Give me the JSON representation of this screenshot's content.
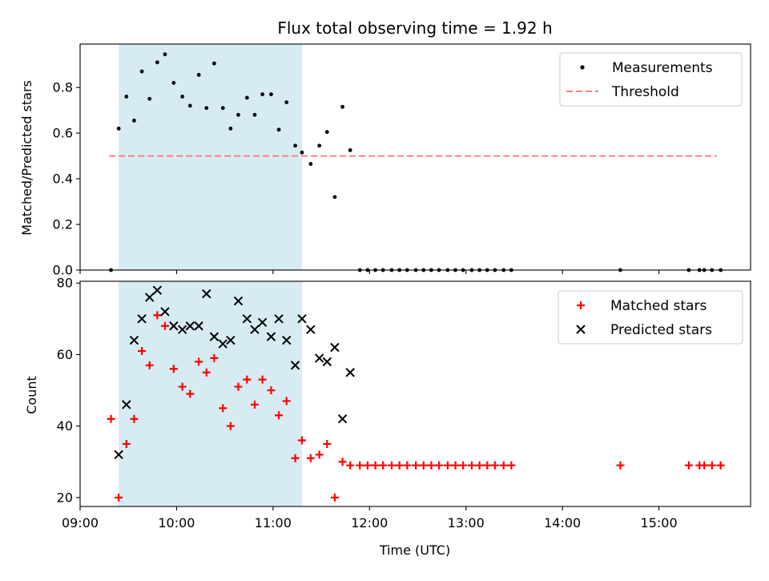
{
  "chart_data": [
    {
      "type": "scatter",
      "title": "Flux total observing time = 1.92 h",
      "xlabel": "",
      "ylabel": "Matched/Predicted stars",
      "xlim": [
        9.0,
        15.95
      ],
      "ylim": [
        0.0,
        0.99
      ],
      "yticks": [
        0.0,
        0.2,
        0.4,
        0.6,
        0.8
      ],
      "ytick_labels": [
        "0.0",
        "0.2",
        "0.4",
        "0.6",
        "0.8"
      ],
      "xticks": [
        9,
        10,
        11,
        12,
        13,
        14,
        15
      ],
      "shaded_span": [
        9.4,
        11.3
      ],
      "shade_color": "#add8e6",
      "threshold": {
        "name": "Threshold",
        "value": 0.5,
        "x_start": 9.3,
        "x_end": 15.6,
        "color": "#ff7f7f"
      },
      "legend_position": "top-right",
      "series": [
        {
          "name": "Measurements",
          "marker": "dot",
          "color": "#000000",
          "points": [
            [
              9.32,
              0.0
            ],
            [
              9.4,
              0.62
            ],
            [
              9.48,
              0.76
            ],
            [
              9.56,
              0.655
            ],
            [
              9.64,
              0.87
            ],
            [
              9.72,
              0.75
            ],
            [
              9.8,
              0.91
            ],
            [
              9.88,
              0.945
            ],
            [
              9.97,
              0.82
            ],
            [
              10.06,
              0.76
            ],
            [
              10.14,
              0.72
            ],
            [
              10.23,
              0.855
            ],
            [
              10.31,
              0.71
            ],
            [
              10.39,
              0.905
            ],
            [
              10.48,
              0.71
            ],
            [
              10.56,
              0.62
            ],
            [
              10.64,
              0.68
            ],
            [
              10.73,
              0.755
            ],
            [
              10.81,
              0.68
            ],
            [
              10.89,
              0.77
            ],
            [
              10.98,
              0.77
            ],
            [
              11.06,
              0.615
            ],
            [
              11.14,
              0.735
            ],
            [
              11.23,
              0.545
            ],
            [
              11.3,
              0.515
            ],
            [
              11.39,
              0.465
            ],
            [
              11.48,
              0.545
            ],
            [
              11.56,
              0.605
            ],
            [
              11.64,
              0.32
            ],
            [
              11.72,
              0.715
            ],
            [
              11.8,
              0.525
            ],
            [
              11.9,
              0.0
            ],
            [
              11.98,
              0.0
            ],
            [
              12.06,
              0.0
            ],
            [
              12.14,
              0.0
            ],
            [
              12.23,
              0.0
            ],
            [
              12.31,
              0.0
            ],
            [
              12.39,
              0.0
            ],
            [
              12.48,
              0.0
            ],
            [
              12.56,
              0.0
            ],
            [
              12.64,
              0.0
            ],
            [
              12.72,
              0.0
            ],
            [
              12.81,
              0.0
            ],
            [
              12.89,
              0.0
            ],
            [
              12.97,
              0.0
            ],
            [
              13.06,
              0.0
            ],
            [
              13.14,
              0.0
            ],
            [
              13.22,
              0.0
            ],
            [
              13.3,
              0.0
            ],
            [
              13.39,
              0.0
            ],
            [
              13.47,
              0.0
            ],
            [
              14.6,
              0.0
            ],
            [
              15.31,
              0.0
            ],
            [
              15.42,
              0.0
            ],
            [
              15.47,
              0.0
            ],
            [
              15.55,
              0.0
            ],
            [
              15.64,
              0.0
            ]
          ]
        }
      ]
    },
    {
      "type": "scatter",
      "title": "",
      "xlabel": "Time (UTC)",
      "ylabel": "Count",
      "xlim": [
        9.0,
        15.95
      ],
      "ylim": [
        17.5,
        80.5
      ],
      "yticks": [
        20,
        40,
        60,
        80
      ],
      "ytick_labels": [
        "20",
        "40",
        "60",
        "80"
      ],
      "xticks": [
        9,
        10,
        11,
        12,
        13,
        14,
        15
      ],
      "xtick_labels": [
        "09:00",
        "10:00",
        "11:00",
        "12:00",
        "13:00",
        "14:00",
        "15:00"
      ],
      "shaded_span": [
        9.4,
        11.3
      ],
      "shade_color": "#add8e6",
      "legend_position": "top-right",
      "series": [
        {
          "name": "Matched stars",
          "marker": "plus",
          "color": "#ff0000",
          "points": [
            [
              9.32,
              42
            ],
            [
              9.4,
              20
            ],
            [
              9.48,
              35
            ],
            [
              9.56,
              42
            ],
            [
              9.64,
              61
            ],
            [
              9.72,
              57
            ],
            [
              9.8,
              71
            ],
            [
              9.88,
              68
            ],
            [
              9.97,
              56
            ],
            [
              10.06,
              51
            ],
            [
              10.14,
              49
            ],
            [
              10.23,
              58
            ],
            [
              10.31,
              55
            ],
            [
              10.39,
              59
            ],
            [
              10.48,
              45
            ],
            [
              10.56,
              40
            ],
            [
              10.64,
              51
            ],
            [
              10.73,
              53
            ],
            [
              10.81,
              46
            ],
            [
              10.89,
              53
            ],
            [
              10.98,
              50
            ],
            [
              11.06,
              43
            ],
            [
              11.14,
              47
            ],
            [
              11.23,
              31
            ],
            [
              11.3,
              36
            ],
            [
              11.39,
              31
            ],
            [
              11.48,
              32
            ],
            [
              11.56,
              35
            ],
            [
              11.64,
              20
            ],
            [
              11.72,
              30
            ],
            [
              11.8,
              29
            ],
            [
              11.9,
              29
            ],
            [
              11.98,
              29
            ],
            [
              12.06,
              29
            ],
            [
              12.14,
              29
            ],
            [
              12.23,
              29
            ],
            [
              12.31,
              29
            ],
            [
              12.39,
              29
            ],
            [
              12.48,
              29
            ],
            [
              12.56,
              29
            ],
            [
              12.64,
              29
            ],
            [
              12.72,
              29
            ],
            [
              12.81,
              29
            ],
            [
              12.89,
              29
            ],
            [
              12.97,
              29
            ],
            [
              13.06,
              29
            ],
            [
              13.14,
              29
            ],
            [
              13.22,
              29
            ],
            [
              13.3,
              29
            ],
            [
              13.39,
              29
            ],
            [
              13.47,
              29
            ],
            [
              14.6,
              29
            ],
            [
              15.31,
              29
            ],
            [
              15.42,
              29
            ],
            [
              15.47,
              29
            ],
            [
              15.55,
              29
            ],
            [
              15.64,
              29
            ]
          ]
        },
        {
          "name": "Predicted stars",
          "marker": "x",
          "color": "#000000",
          "points": [
            [
              9.4,
              32
            ],
            [
              9.48,
              46
            ],
            [
              9.56,
              64
            ],
            [
              9.64,
              70
            ],
            [
              9.72,
              76
            ],
            [
              9.8,
              78
            ],
            [
              9.88,
              72
            ],
            [
              9.97,
              68
            ],
            [
              10.06,
              67
            ],
            [
              10.14,
              68
            ],
            [
              10.23,
              68
            ],
            [
              10.31,
              77
            ],
            [
              10.39,
              65
            ],
            [
              10.48,
              63
            ],
            [
              10.56,
              64
            ],
            [
              10.64,
              75
            ],
            [
              10.73,
              70
            ],
            [
              10.81,
              67
            ],
            [
              10.89,
              69
            ],
            [
              10.98,
              65
            ],
            [
              11.06,
              70
            ],
            [
              11.14,
              64
            ],
            [
              11.23,
              57
            ],
            [
              11.3,
              70
            ],
            [
              11.39,
              67
            ],
            [
              11.48,
              59
            ],
            [
              11.56,
              58
            ],
            [
              11.64,
              62
            ],
            [
              11.72,
              42
            ],
            [
              11.8,
              55
            ]
          ]
        }
      ]
    }
  ]
}
